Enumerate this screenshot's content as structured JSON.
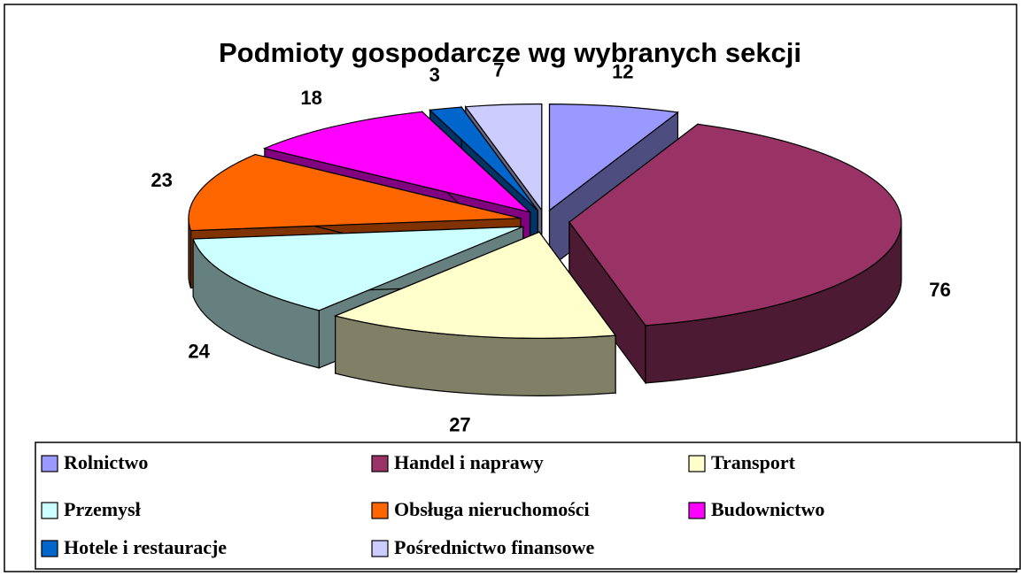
{
  "chart_data": {
    "type": "pie3d",
    "title": "Podmioty gospodarcze wg wybranych sekcji",
    "categories": [
      "Rolnictwo",
      "Handel i naprawy",
      "Transport",
      "Przemysł",
      "Obsługa nieruchomości",
      "Budownictwo",
      "Hotele i restauracje",
      "Pośrednictwo finansowe"
    ],
    "values": [
      12,
      76,
      27,
      24,
      23,
      18,
      3,
      7
    ],
    "colors": [
      "#9999ff",
      "#993366",
      "#ffffcc",
      "#ccffff",
      "#ff6600",
      "#ff00ff",
      "#0066cc",
      "#ccccff"
    ]
  }
}
